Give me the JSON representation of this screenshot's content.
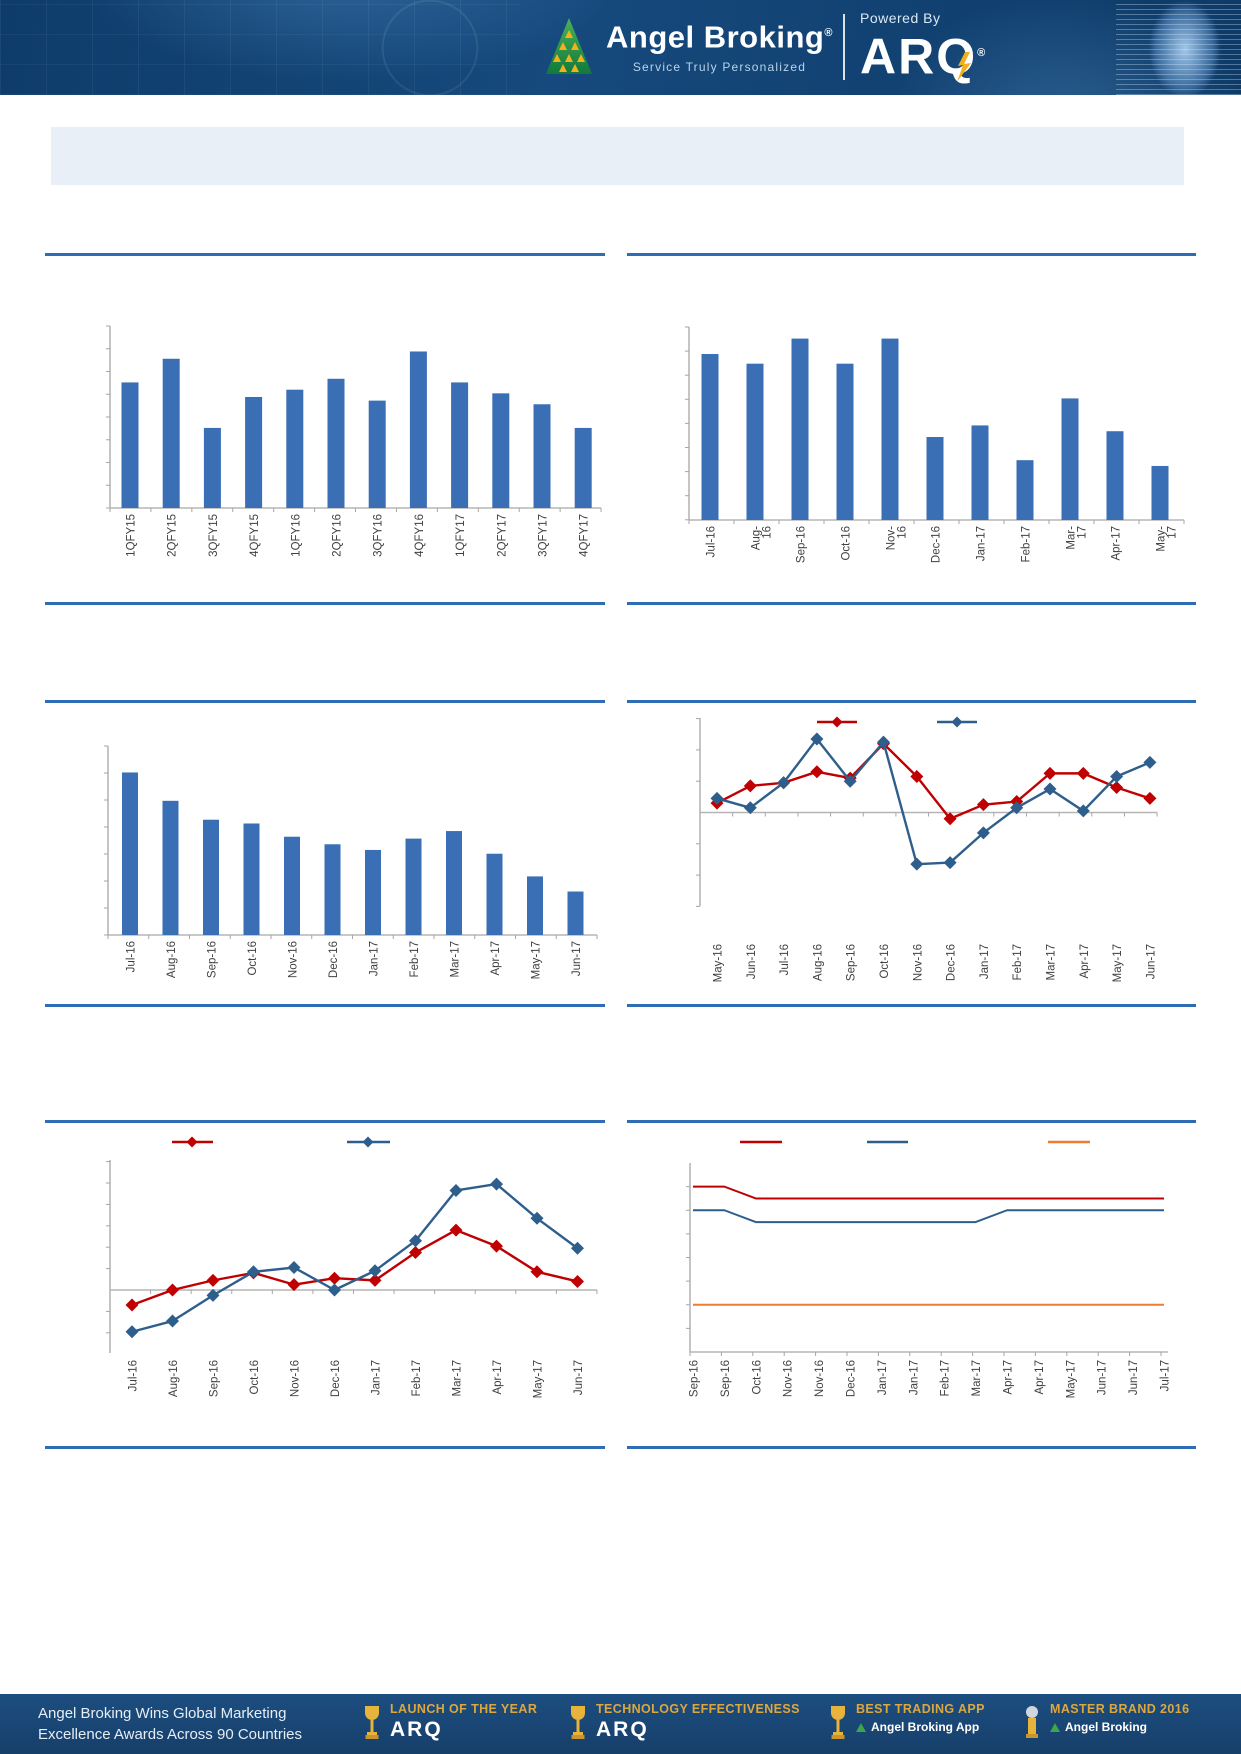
{
  "header": {
    "brand": "Angel Broking",
    "registered": "®",
    "tagline": "Service Truly Personalized",
    "powered_by": "Powered By",
    "arq": "ARQ"
  },
  "title_box": {
    "text": ""
  },
  "colors": {
    "bar": "#3a6fb5",
    "series_red": "#c00000",
    "series_blue": "#2e5e8c",
    "series_orange": "#ed7d31",
    "divider": "#2e6db4",
    "header_bg": "#123f6d",
    "footer_bg": "#1b4c7d",
    "award_gold": "#dca73f"
  },
  "chart_data": [
    {
      "id": "quarterly-bar",
      "type": "bar",
      "title": "",
      "categories": [
        "1QFY15",
        "2QFY15",
        "3QFY15",
        "4QFY15",
        "1QFY16",
        "2QFY16",
        "3QFY16",
        "4QFY16",
        "1QFY17",
        "2QFY17",
        "3QFY17",
        "4QFY17"
      ],
      "values": [
        69,
        82,
        44,
        61,
        65,
        71,
        59,
        86,
        69,
        63,
        57,
        44
      ],
      "ylabel": "",
      "ylim": [
        0,
        100
      ],
      "y_tick_labels": "not visible",
      "note": "values are % of visible axis height; no numeric axis labels shown"
    },
    {
      "id": "monthly-bar-top-right",
      "type": "bar",
      "title": "",
      "categories": [
        "Jul-16",
        "Aug-\n16",
        "Sep-16",
        "Oct-16",
        "Nov-\n16",
        "Dec-16",
        "Jan-17",
        "Feb-17",
        "Mar-\n17",
        "Apr-17",
        "May-\n17"
      ],
      "values": [
        86,
        81,
        94,
        81,
        94,
        43,
        49,
        31,
        63,
        46,
        28
      ],
      "ylim": [
        0,
        100
      ],
      "y_tick_labels": "not visible"
    },
    {
      "id": "monthly-bar-middle-left",
      "type": "bar",
      "title": "",
      "categories": [
        "Jul-16",
        "Aug-16",
        "Sep-16",
        "Oct-16",
        "Nov-16",
        "Dec-16",
        "Jan-17",
        "Feb-17",
        "Mar-17",
        "Apr-17",
        "May-17",
        "Jun-17"
      ],
      "values": [
        86,
        71,
        61,
        59,
        52,
        48,
        45,
        51,
        55,
        43,
        31,
        23
      ],
      "ylim": [
        0,
        100
      ],
      "y_tick_labels": "not visible"
    },
    {
      "id": "two-series-line-middle-right",
      "type": "line",
      "title": "",
      "legend": [
        "",
        ""
      ],
      "legend_position": "top",
      "categories": [
        "May-16",
        "Jun-16",
        "Jul-16",
        "Aug-16",
        "Sep-16",
        "Oct-16",
        "Nov-16",
        "Dec-16",
        "Jan-17",
        "Feb-17",
        "Mar-17",
        "Apr-17",
        "May-17",
        "Jun-17"
      ],
      "series": [
        {
          "name": "",
          "color": "#c00000",
          "marker": "diamond",
          "values": [
            0.3,
            0.85,
            0.95,
            1.3,
            1.1,
            2.2,
            1.15,
            -0.2,
            0.25,
            0.35,
            1.25,
            1.25,
            0.8,
            0.45
          ]
        },
        {
          "name": "",
          "color": "#2e5e8c",
          "marker": "diamond",
          "values": [
            0.45,
            0.15,
            0.95,
            2.35,
            1.0,
            2.25,
            -1.65,
            -1.6,
            -0.65,
            0.15,
            0.75,
            0.05,
            1.15,
            1.6
          ]
        }
      ],
      "ylim": [
        -3.1,
        3.1
      ],
      "y_tick_labels": "not visible",
      "note": "values in axis tick units relative to the zero baseline"
    },
    {
      "id": "two-series-line-bottom-left",
      "type": "line",
      "title": "",
      "legend": [
        "",
        ""
      ],
      "legend_position": "top",
      "categories": [
        "Jul-16",
        "Aug-16",
        "Sep-16",
        "Oct-16",
        "Nov-16",
        "Dec-16",
        "Jan-17",
        "Feb-17",
        "Mar-17",
        "Apr-17",
        "May-17",
        "Jun-17"
      ],
      "series": [
        {
          "name": "",
          "color": "#c00000",
          "marker": "diamond",
          "values": [
            -0.7,
            0.0,
            0.45,
            0.8,
            0.25,
            0.55,
            0.45,
            1.75,
            2.8,
            2.05,
            0.85,
            0.4
          ]
        },
        {
          "name": "",
          "color": "#2e5e8c",
          "marker": "diamond",
          "values": [
            -1.95,
            -1.45,
            -0.25,
            0.85,
            1.05,
            0.0,
            0.9,
            2.3,
            4.65,
            4.95,
            3.35,
            1.95
          ]
        }
      ],
      "ylim": [
        -3.0,
        6.2
      ],
      "y_tick_labels": "not visible",
      "note": "values in axis tick units relative to the zero baseline"
    },
    {
      "id": "three-series-step-line-bottom-right",
      "type": "line",
      "title": "",
      "legend": [
        "",
        "",
        ""
      ],
      "legend_position": "top",
      "categories": [
        "Sep-16",
        "Sep-16",
        "Oct-16",
        "Nov-16",
        "Nov-16",
        "Dec-16",
        "Jan-17",
        "Jan-17",
        "Feb-17",
        "Mar-17",
        "Apr-17",
        "Apr-17",
        "May-17",
        "Jun-17",
        "Jun-17",
        "Jul-17"
      ],
      "series": [
        {
          "name": "",
          "color": "#c00000",
          "marker": "none",
          "values": [
            6.5,
            6.5,
            6.25,
            6.25,
            6.25,
            6.25,
            6.25,
            6.25,
            6.25,
            6.25,
            6.25,
            6.25,
            6.25,
            6.25,
            6.25,
            6.25
          ]
        },
        {
          "name": "",
          "color": "#2e5e8c",
          "marker": "none",
          "values": [
            6.0,
            6.0,
            5.75,
            5.75,
            5.75,
            5.75,
            5.75,
            5.75,
            5.75,
            5.75,
            6.0,
            6.0,
            6.0,
            6.0,
            6.0,
            6.0
          ]
        },
        {
          "name": "",
          "color": "#ed7d31",
          "marker": "none",
          "values": [
            4.0,
            4.0,
            4.0,
            4.0,
            4.0,
            4.0,
            4.0,
            4.0,
            4.0,
            4.0,
            4.0,
            4.0,
            4.0,
            4.0,
            4.0,
            4.0
          ]
        }
      ],
      "ylim": [
        3.0,
        7.0
      ],
      "y_tick_step": 0.5,
      "y_tick_labels": "not visible"
    }
  ],
  "footer": {
    "left_line1": "Angel Broking Wins Global Marketing",
    "left_line2": "Excellence Awards Across 90 Countries",
    "awards": [
      {
        "title": "LAUNCH OF THE YEAR",
        "subtitle": "ARQ"
      },
      {
        "title": "TECHNOLOGY EFFECTIVENESS",
        "subtitle": "ARQ"
      },
      {
        "title": "BEST TRADING APP",
        "subtitle": "Angel Broking App"
      },
      {
        "title": "MASTER BRAND 2016",
        "subtitle": "Angel Broking"
      }
    ]
  }
}
